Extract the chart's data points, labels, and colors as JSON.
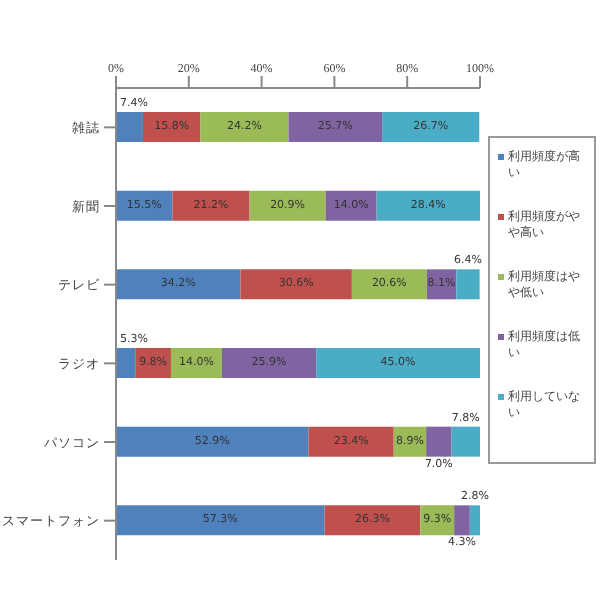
{
  "chart_data": {
    "type": "bar",
    "orientation": "horizontal",
    "stacked": true,
    "categories": [
      "雑誌",
      "新聞",
      "テレビ",
      "ラジオ",
      "パソコン",
      "スマートフォン"
    ],
    "series": [
      {
        "name": "利用頻度が高い",
        "color": "#4f81bd",
        "values": [
          7.4,
          15.5,
          34.2,
          5.3,
          52.9,
          57.3
        ],
        "value_labels": [
          "7.4%",
          "15.5%",
          "34.2%",
          "5.3%",
          "52.9%",
          "57.3%"
        ]
      },
      {
        "name": "利用頻度がやや高い",
        "color": "#c0504d",
        "values": [
          15.8,
          21.2,
          30.6,
          9.8,
          23.4,
          26.3
        ],
        "value_labels": [
          "15.8%",
          "21.2%",
          "30.6%",
          "9.8%",
          "23.4%",
          "26.3%"
        ]
      },
      {
        "name": "利用頻度はやや低い",
        "color": "#9bbb59",
        "values": [
          24.2,
          20.9,
          20.6,
          14.0,
          8.9,
          9.3
        ],
        "value_labels": [
          "24.2%",
          "20.9%",
          "20.6%",
          "14.0%",
          "8.9%",
          "9.3%"
        ]
      },
      {
        "name": "利用頻度は低い",
        "color": "#8064a2",
        "values": [
          25.7,
          14.0,
          8.1,
          25.9,
          7.0,
          4.3
        ],
        "value_labels": [
          "25.7%",
          "14.0%",
          "8.1%",
          "25.9%",
          "7.0%",
          "4.3%"
        ]
      },
      {
        "name": "利用していない",
        "color": "#4bacc6",
        "values": [
          26.7,
          28.4,
          6.4,
          45.0,
          7.8,
          2.8
        ],
        "value_labels": [
          "26.7%",
          "28.4%",
          "6.4%",
          "45.0%",
          "7.8%",
          "2.8%"
        ]
      }
    ],
    "xlim": [
      0,
      100
    ],
    "xticks": [
      {
        "value": 0,
        "label": "0%"
      },
      {
        "value": 20,
        "label": "20%"
      },
      {
        "value": 40,
        "label": "40%"
      },
      {
        "value": 60,
        "label": "60%"
      },
      {
        "value": 80,
        "label": "80%"
      },
      {
        "value": 100,
        "label": "100%"
      }
    ],
    "grid": false,
    "legend": "right"
  }
}
